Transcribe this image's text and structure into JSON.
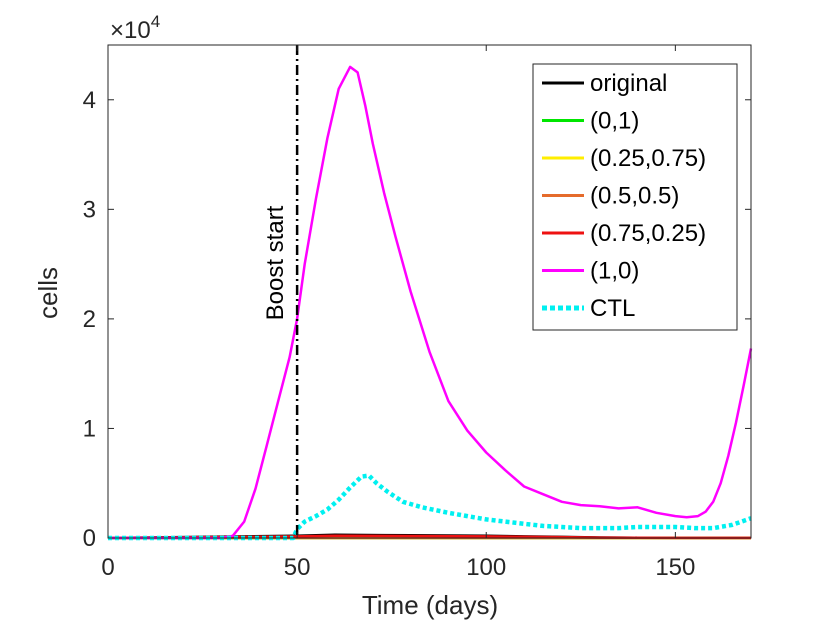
{
  "chart_data": {
    "type": "line",
    "title": "",
    "xlabel": "Time (days)",
    "ylabel": "cells",
    "y_multiplier": "×10",
    "y_multiplier_exp": "4",
    "xlim": [
      0,
      170
    ],
    "ylim": [
      0,
      45000
    ],
    "xticks": [
      0,
      50,
      100,
      150
    ],
    "xtick_labels": [
      "0",
      "50",
      "100",
      "150"
    ],
    "yticks": [
      0,
      10000,
      20000,
      30000,
      40000
    ],
    "ytick_labels": [
      "0",
      "1",
      "2",
      "3",
      "4"
    ],
    "grid": false,
    "legend_position": "top-right",
    "annotation": {
      "text": "Boost start",
      "x": 50,
      "line_style": "dash-dot"
    },
    "series": [
      {
        "name": "original",
        "color": "#000000",
        "style": "solid",
        "x": [
          0,
          50,
          60,
          80,
          100,
          110,
          120,
          130,
          140,
          150,
          160,
          170
        ],
        "y": [
          0,
          200,
          300,
          250,
          200,
          150,
          100,
          50,
          30,
          20,
          10,
          10
        ]
      },
      {
        "name": "(0,1)",
        "color": "#00e600",
        "style": "solid",
        "x": [
          0,
          50,
          100,
          170
        ],
        "y": [
          0,
          0,
          0,
          0
        ]
      },
      {
        "name": "(0.25,0.75)",
        "color": "#ffee00",
        "style": "solid",
        "x": [
          0,
          50,
          100,
          170
        ],
        "y": [
          0,
          0,
          0,
          0
        ]
      },
      {
        "name": "(0.5,0.5)",
        "color": "#e56b2b",
        "style": "solid",
        "x": [
          0,
          50,
          100,
          170
        ],
        "y": [
          0,
          0,
          0,
          0
        ]
      },
      {
        "name": "(0.75,0.25)",
        "color": "#ee1111",
        "style": "solid",
        "x": [
          0,
          50,
          60,
          80,
          100,
          110,
          120,
          130,
          140,
          150,
          160,
          170
        ],
        "y": [
          0,
          150,
          200,
          180,
          150,
          120,
          80,
          40,
          20,
          10,
          5,
          5
        ]
      },
      {
        "name": "(1,0)",
        "color": "#ff00ff",
        "style": "solid",
        "x": [
          0,
          30,
          33,
          36,
          39,
          42,
          45,
          48,
          50,
          52,
          55,
          58,
          61,
          64,
          66,
          68,
          70,
          73,
          76,
          80,
          85,
          90,
          95,
          100,
          105,
          110,
          115,
          120,
          125,
          130,
          135,
          140,
          145,
          150,
          153,
          156,
          158,
          160,
          162,
          164,
          166,
          168,
          170
        ],
        "y": [
          0,
          0,
          200,
          1500,
          4500,
          8500,
          12500,
          16500,
          20000,
          25000,
          31000,
          36500,
          41000,
          43000,
          42500,
          39500,
          36000,
          31500,
          27500,
          22500,
          17000,
          12500,
          9800,
          7800,
          6200,
          4700,
          4000,
          3300,
          3000,
          2900,
          2700,
          2800,
          2300,
          2000,
          1900,
          2000,
          2400,
          3300,
          5000,
          7500,
          10500,
          13800,
          17300
        ]
      },
      {
        "name": "CTL",
        "color": "#00f0f0",
        "style": "dotted",
        "x": [
          0,
          49,
          50,
          52,
          55,
          58,
          61,
          64,
          67,
          69,
          71,
          74,
          78,
          83,
          90,
          95,
          100,
          105,
          110,
          115,
          120,
          125,
          130,
          135,
          140,
          145,
          150,
          155,
          160,
          165,
          170
        ],
        "y": [
          0,
          0,
          800,
          1500,
          2000,
          2600,
          3500,
          4600,
          5600,
          5700,
          5000,
          4200,
          3300,
          2800,
          2300,
          2000,
          1700,
          1500,
          1300,
          1100,
          1000,
          900,
          900,
          900,
          1000,
          1000,
          1000,
          900,
          900,
          1200,
          1800
        ]
      }
    ]
  }
}
